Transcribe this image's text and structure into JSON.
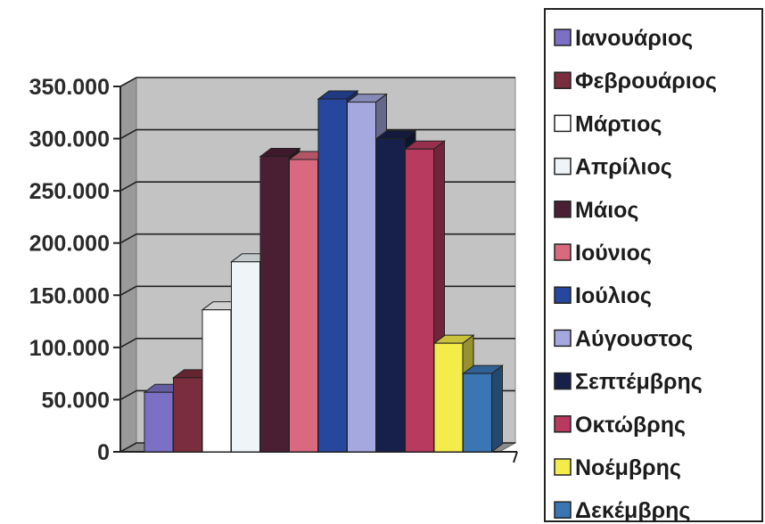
{
  "chart_data": {
    "type": "bar",
    "title": "",
    "xlabel": "",
    "ylabel": "",
    "ylim": [
      0,
      350000
    ],
    "y_ticks": [
      "0",
      "50.000",
      "100.000",
      "150.000",
      "200.000",
      "250.000",
      "300.000",
      "350.000"
    ],
    "grid": true,
    "legend_position": "right",
    "series": [
      {
        "name": "Ιανουάριος",
        "value": 57000,
        "color": "#7b70c6"
      },
      {
        "name": "Φεβρουάριος",
        "value": 71000,
        "color": "#7a2d3c"
      },
      {
        "name": "Μάρτιος",
        "value": 136000,
        "color": "#ffffff"
      },
      {
        "name": "Απρίλιος",
        "value": 182000,
        "color": "#eef4f8"
      },
      {
        "name": "Μάιος",
        "value": 283000,
        "color": "#4a1f34"
      },
      {
        "name": "Ιούνιος",
        "value": 280000,
        "color": "#d9697e"
      },
      {
        "name": "Ιούλιος",
        "value": 338000,
        "color": "#27479f"
      },
      {
        "name": "Αύγουστος",
        "value": 335000,
        "color": "#a4a8de"
      },
      {
        "name": "Σεπτέμβρης",
        "value": 300000,
        "color": "#17204a"
      },
      {
        "name": "Οκτώβρης",
        "value": 290000,
        "color": "#b83a5e"
      },
      {
        "name": "Νοέμβρης",
        "value": 104000,
        "color": "#f4ec4a"
      },
      {
        "name": "Δεκέμβρης",
        "value": 75000,
        "color": "#3a76b4"
      }
    ]
  }
}
